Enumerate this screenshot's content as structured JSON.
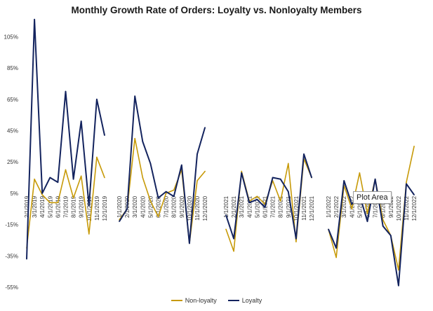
{
  "chart_data": {
    "type": "line",
    "title": "Monthly Growth Rate of Orders: Loyalty vs. Nonloyalty Members",
    "xlabel": "",
    "ylabel": "",
    "ylim": [
      -55,
      115
    ],
    "y_ticks": [
      "-55%",
      "-35%",
      "-15%",
      "5%",
      "25%",
      "45%",
      "65%",
      "85%",
      "105%"
    ],
    "y_tick_values": [
      -55,
      -35,
      -15,
      5,
      25,
      45,
      65,
      85,
      105
    ],
    "grid": false,
    "legend_position": "bottom",
    "groups": [
      {
        "categories": [
          "2/1/2019",
          "3/1/2019",
          "4/1/2019",
          "5/1/2019",
          "6/1/2019",
          "7/1/2019",
          "8/1/2019",
          "9/1/2019",
          "10/1/2019",
          "11/1/2019",
          "12/1/2019"
        ],
        "series": [
          {
            "name": "Non-loyalty",
            "values": [
              -30,
              14,
              4,
              -1,
              -1,
              20,
              2,
              16,
              -21,
              28,
              15
            ]
          },
          {
            "name": "Loyalty",
            "values": [
              -37,
              116,
              5,
              15,
              12,
              70,
              14,
              51,
              -3,
              65,
              42
            ]
          }
        ]
      },
      {
        "categories": [
          "1/1/2020",
          "2/1/2020",
          "3/1/2020",
          "4/1/2020",
          "5/1/2020",
          "6/1/2020",
          "7/1/2020",
          "8/1/2020",
          "9/1/2020",
          "10/1/2020",
          "11/1/2020",
          "12/1/2020"
        ],
        "series": [
          {
            "name": "Non-loyalty",
            "values": [
              -12,
              -5,
              40,
              15,
              0,
              -10,
              5,
              7,
              20,
              -27,
              13,
              19
            ]
          },
          {
            "name": "Loyalty",
            "values": [
              -13,
              -5,
              67,
              38,
              24,
              2,
              6,
              3,
              23,
              -27,
              30,
              47
            ]
          }
        ]
      },
      {
        "categories": [
          "1/1/2021",
          "2/1/2021",
          "3/1/2021",
          "4/1/2021",
          "5/1/2021",
          "6/1/2021",
          "7/1/2021",
          "8/1/2021",
          "9/1/2021",
          "10/1/2021",
          "11/1/2021",
          "12/1/2021"
        ],
        "series": [
          {
            "name": "Non-loyalty",
            "values": [
              -18,
              -32,
              19,
              0,
              3,
              -2,
              13,
              0,
              24,
              -26,
              27,
              15
            ]
          },
          {
            "name": "Loyalty",
            "values": [
              -9,
              -24,
              18,
              -1,
              1,
              -4,
              15,
              14,
              6,
              -24,
              30,
              15
            ]
          }
        ]
      },
      {
        "categories": [
          "1/1/2022",
          "2/1/2022",
          "3/1/2022",
          "4/1/2022",
          "5/1/2022",
          "6/1/2022",
          "7/1/2022",
          "8/1/2022",
          "9/1/2022",
          "10/1/2022",
          "11/1/2022",
          "12/1/2022"
        ],
        "series": [
          {
            "name": "Non-loyalty",
            "values": [
              -18,
              -36,
              10,
              -5,
              18,
              -8,
              14,
              -12,
              -22,
              -44,
              12,
              35
            ]
          },
          {
            "name": "Loyalty",
            "values": [
              -18,
              -30,
              13,
              -2,
              4,
              -13,
              14,
              -16,
              -22,
              -54,
              11,
              4
            ]
          }
        ]
      }
    ]
  },
  "legend": {
    "items": [
      {
        "label": "Non-loyalty",
        "color": "#c79a08"
      },
      {
        "label": "Loyalty",
        "color": "#13235e"
      }
    ]
  },
  "tooltip": {
    "text": "Plot Area"
  },
  "colors": {
    "non_loyalty": "#c79a08",
    "loyalty": "#13235e"
  }
}
